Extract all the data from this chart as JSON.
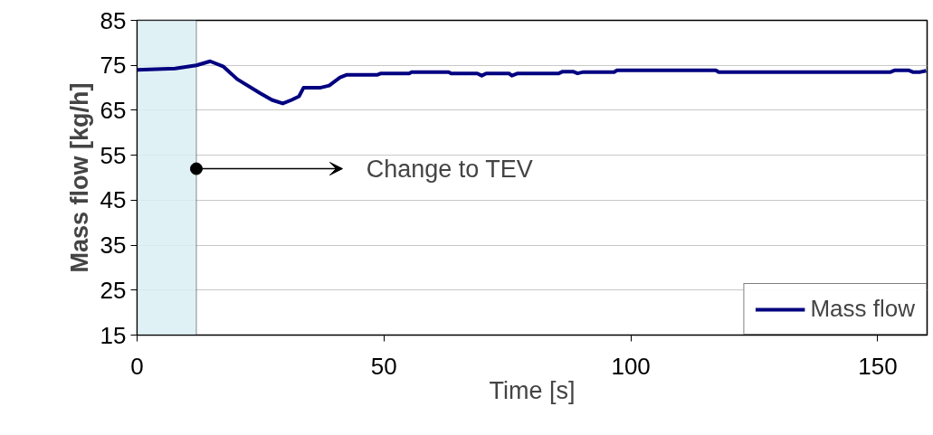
{
  "chart_data": {
    "type": "line",
    "xlabel": "Time [s]",
    "ylabel": "Mass flow [kg/h]",
    "x": [
      0,
      7.7,
      12,
      14.8,
      17.5,
      20.3,
      24.9,
      27.3,
      29.5,
      31.3,
      32.8,
      33.7,
      37,
      38.9,
      41.1,
      42.5,
      48.7,
      49.4,
      55.1,
      55.6,
      63.1,
      63.6,
      68.9,
      69.8,
      70.7,
      75.3,
      75.9,
      77.1,
      85.4,
      86.2,
      88.3,
      89.2,
      90.4,
      96.6,
      97.2,
      117.2,
      117.8,
      152.6,
      153.5,
      156.2,
      157.1,
      158.6,
      159.8
    ],
    "series": [
      {
        "name": "Mass flow",
        "color": "#000080",
        "values": [
          74,
          74.3,
          75,
          75.9,
          74.7,
          71.9,
          68.8,
          67.3,
          66.5,
          67.3,
          68.1,
          70,
          70,
          70.5,
          72.3,
          72.9,
          72.9,
          73.2,
          73.2,
          73.5,
          73.5,
          73.2,
          73.2,
          72.7,
          73.2,
          73.2,
          72.7,
          73.2,
          73.2,
          73.6,
          73.6,
          73.2,
          73.5,
          73.5,
          73.9,
          73.9,
          73.5,
          73.5,
          73.9,
          73.9,
          73.5,
          73.5,
          73.8
        ]
      }
    ],
    "xlim": [
      0,
      160
    ],
    "xticks": [
      0,
      50,
      100,
      150
    ],
    "ylim": [
      15,
      85
    ],
    "yticks": [
      15,
      25,
      35,
      45,
      55,
      65,
      75,
      85
    ],
    "grid": "y",
    "legend": "bottom right",
    "line_style": "solid",
    "bands": [
      {
        "axis": "x",
        "from": 0,
        "to": 12,
        "color": "#daeef3"
      }
    ],
    "annotations": [
      {
        "text": "Change to TEV",
        "x": 12,
        "y": 52
      }
    ]
  }
}
